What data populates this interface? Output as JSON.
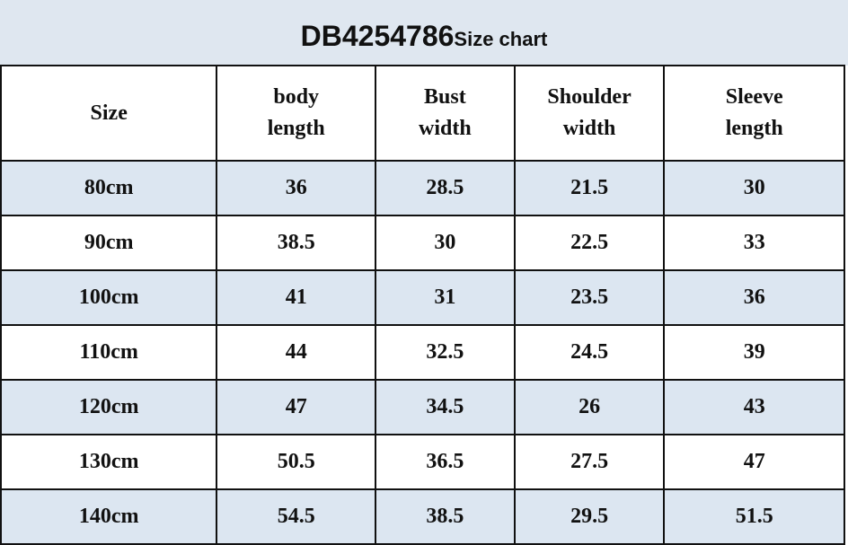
{
  "title": {
    "code": "DB4254786",
    "subtitle": "Size chart"
  },
  "colors": {
    "band": "#dfe7f0",
    "row_alt": "#dce6f1",
    "border": "#111111"
  },
  "table": {
    "headers": [
      [
        "Size"
      ],
      [
        "body",
        "length"
      ],
      [
        "Bust",
        "width"
      ],
      [
        "Shoulder",
        "width"
      ],
      [
        "Sleeve",
        "length"
      ]
    ],
    "rows": [
      [
        "80cm",
        "36",
        "28.5",
        "21.5",
        "30"
      ],
      [
        "90cm",
        "38.5",
        "30",
        "22.5",
        "33"
      ],
      [
        "100cm",
        "41",
        "31",
        "23.5",
        "36"
      ],
      [
        "110cm",
        "44",
        "32.5",
        "24.5",
        "39"
      ],
      [
        "120cm",
        "47",
        "34.5",
        "26",
        "43"
      ],
      [
        "130cm",
        "50.5",
        "36.5",
        "27.5",
        "47"
      ],
      [
        "140cm",
        "54.5",
        "38.5",
        "29.5",
        "51.5"
      ]
    ]
  }
}
